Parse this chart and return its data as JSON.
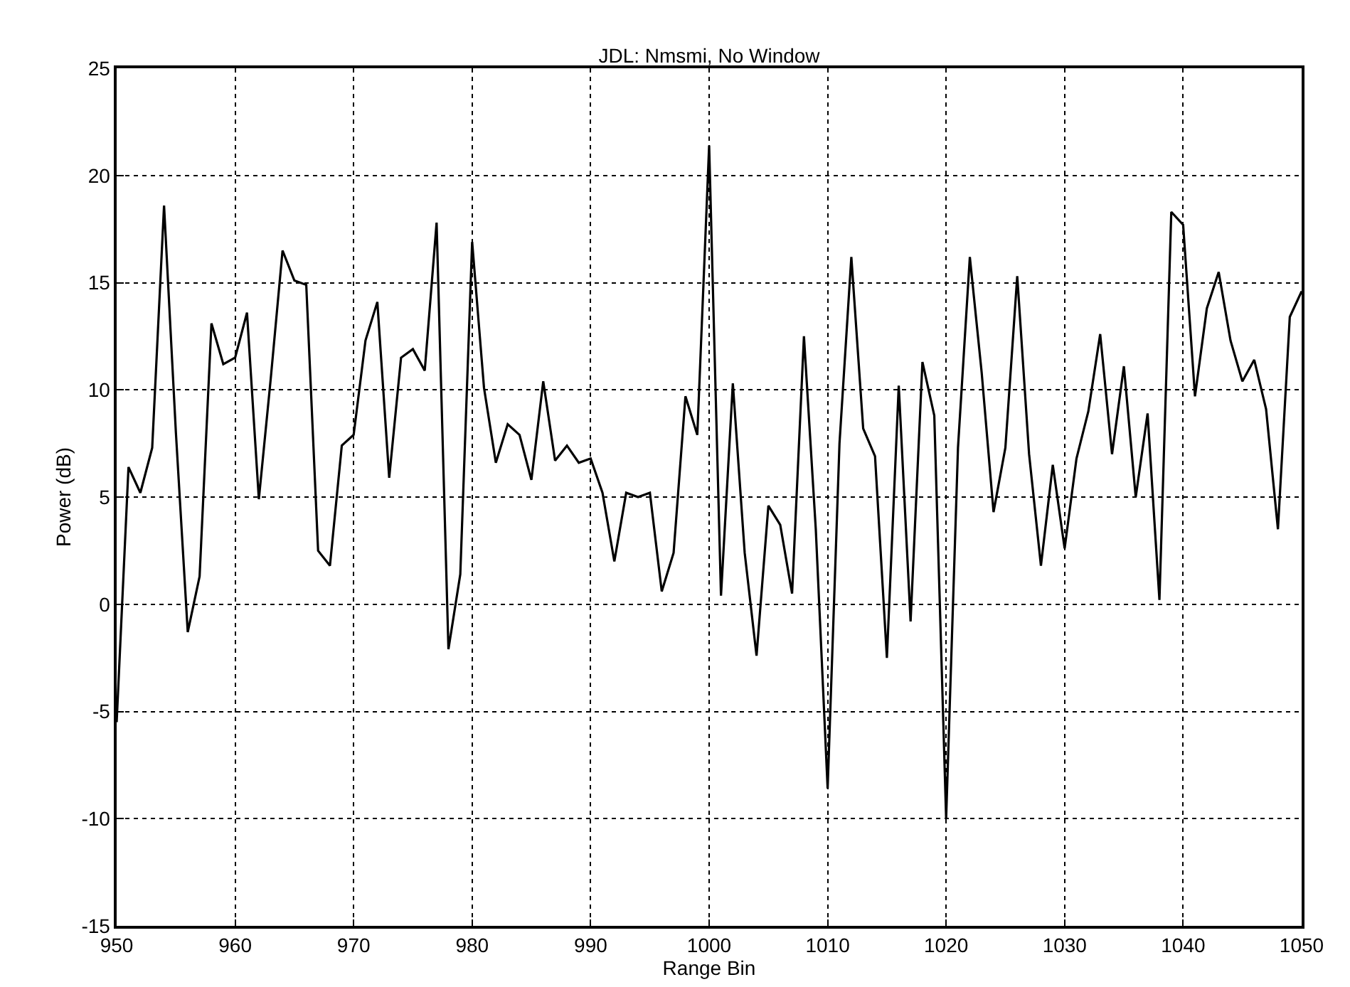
{
  "chart_data": {
    "type": "line",
    "title": "JDL: Nmsmi, No Window",
    "xlabel": "Range Bin",
    "ylabel": "Power (dB)",
    "x": [
      950,
      951,
      952,
      953,
      954,
      955,
      956,
      957,
      958,
      959,
      960,
      961,
      962,
      963,
      964,
      965,
      966,
      967,
      968,
      969,
      970,
      971,
      972,
      973,
      974,
      975,
      976,
      977,
      978,
      979,
      980,
      981,
      982,
      983,
      984,
      985,
      986,
      987,
      988,
      989,
      990,
      991,
      992,
      993,
      994,
      995,
      996,
      997,
      998,
      999,
      1000,
      1001,
      1002,
      1003,
      1004,
      1005,
      1006,
      1007,
      1008,
      1009,
      1010,
      1011,
      1012,
      1013,
      1014,
      1015,
      1016,
      1017,
      1018,
      1019,
      1020,
      1021,
      1022,
      1023,
      1024,
      1025,
      1026,
      1027,
      1028,
      1029,
      1030,
      1031,
      1032,
      1033,
      1034,
      1035,
      1036,
      1037,
      1038,
      1039,
      1040,
      1041,
      1042,
      1043,
      1044,
      1045,
      1046,
      1047,
      1048,
      1049,
      1050
    ],
    "series": [
      {
        "color": "#000000",
        "values": [
          -5.5,
          6.4,
          5.2,
          7.3,
          18.6,
          8,
          -1.3,
          1.3,
          13.1,
          11.2,
          11.5,
          13.6,
          4.9,
          10.5,
          16.5,
          15.1,
          14.9,
          2.5,
          1.8,
          7.4,
          7.9,
          12.3,
          14.1,
          5.9,
          11.5,
          11.9,
          10.9,
          17.8,
          -2.1,
          1.4,
          16.9,
          10.1,
          6.6,
          8.4,
          7.9,
          5.8,
          10.4,
          6.7,
          7.4,
          6.6,
          6.8,
          5.2,
          2.0,
          5.2,
          5.0,
          5.2,
          0.6,
          2.4,
          9.7,
          7.9,
          21.4,
          0.4,
          10.3,
          2.4,
          -2.4,
          4.6,
          3.7,
          0.5,
          12.5,
          3.5,
          -8.6,
          7.5,
          16.2,
          8.2,
          6.9,
          -2.5,
          10.2,
          -0.8,
          11.3,
          8.8,
          -10.0,
          7.3,
          16.2,
          10.8,
          4.3,
          7.3,
          15.3,
          7.0,
          1.8,
          6.5,
          2.6,
          6.8,
          9.0,
          12.6,
          7.0,
          11.1,
          5.0,
          8.9,
          0.2,
          18.3,
          17.7,
          9.7,
          13.8,
          15.5,
          12.3,
          10.4,
          11.4,
          9.1,
          3.5,
          13.4,
          14.6
        ]
      }
    ],
    "xlim": [
      950,
      1050
    ],
    "xticks": [
      950,
      960,
      970,
      980,
      990,
      1000,
      1010,
      1020,
      1030,
      1040,
      1050
    ],
    "ylim": [
      -15,
      25
    ],
    "yticks": [
      -15,
      -10,
      -5,
      0,
      5,
      10,
      15,
      20,
      25
    ],
    "grid": true,
    "marker": "none",
    "line_style": "solid"
  }
}
